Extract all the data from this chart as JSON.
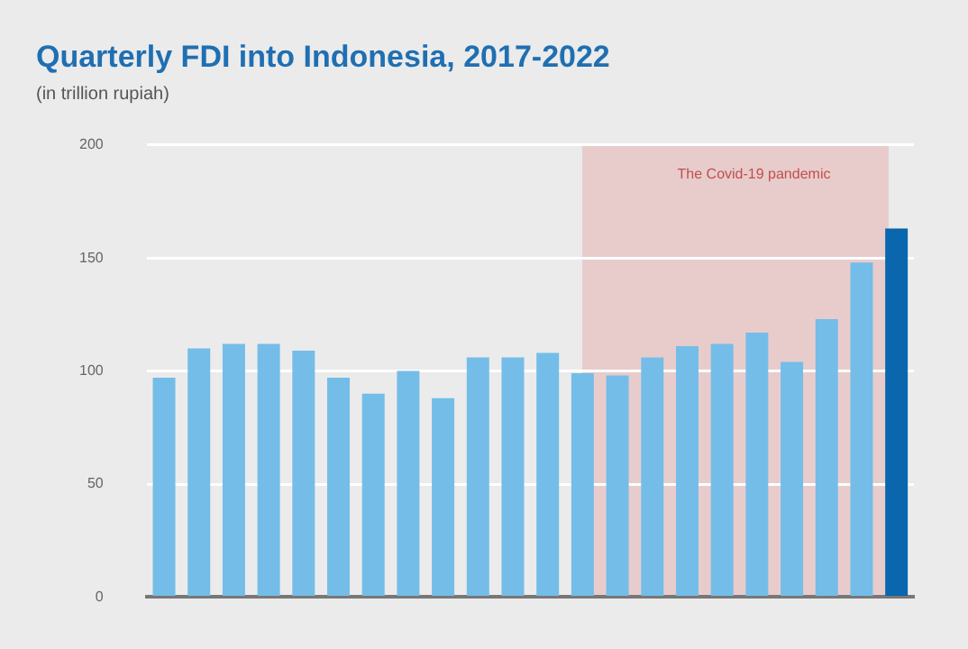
{
  "chart_data": {
    "type": "bar",
    "title": "Quarterly FDI into Indonesia, 2017-2022",
    "subtitle": "(in trillion rupiah)",
    "categories": [
      null,
      null,
      null,
      null,
      null,
      null,
      null,
      null,
      null,
      null,
      null,
      null,
      null,
      null,
      null,
      null,
      null,
      null,
      null,
      null,
      null,
      null
    ],
    "values": [
      97,
      110,
      112,
      112,
      109,
      97,
      90,
      100,
      88,
      106,
      106,
      108,
      99,
      98,
      106,
      111,
      112,
      117,
      104,
      123,
      148,
      163
    ],
    "colors": [
      "#74bde8",
      "#74bde8",
      "#74bde8",
      "#74bde8",
      "#74bde8",
      "#74bde8",
      "#74bde8",
      "#74bde8",
      "#74bde8",
      "#74bde8",
      "#74bde8",
      "#74bde8",
      "#74bde8",
      "#74bde8",
      "#74bde8",
      "#74bde8",
      "#74bde8",
      "#74bde8",
      "#74bde8",
      "#74bde8",
      "#74bde8",
      "#0a66ad"
    ],
    "ylim": [
      0,
      200
    ],
    "yticks": [
      0,
      50,
      100,
      150,
      200
    ],
    "grid": "y",
    "legend": false,
    "tick_labels": "y",
    "annotations": [
      "The Covid-19 pandemic"
    ]
  }
}
